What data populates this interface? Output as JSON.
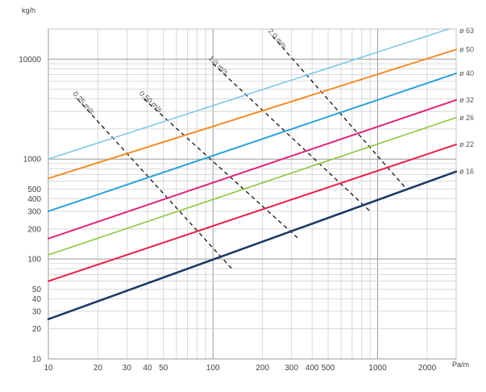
{
  "chart_data": {
    "type": "line",
    "title": "",
    "xlabel": "",
    "ylabel": "",
    "y_unit_label": "kg/h",
    "x_unit_label": "Pa/m",
    "x_scale": "log",
    "y_scale": "log",
    "xlim": [
      10,
      3000
    ],
    "ylim": [
      10,
      20000
    ],
    "grid": true,
    "x_ticks": [
      {
        "value": 10,
        "label": "10"
      },
      {
        "value": 20,
        "label": "20"
      },
      {
        "value": 30,
        "label": "30"
      },
      {
        "value": 40,
        "label": "40"
      },
      {
        "value": 50,
        "label": "50"
      },
      {
        "value": 100,
        "label": "100"
      },
      {
        "value": 200,
        "label": "200"
      },
      {
        "value": 300,
        "label": "300"
      },
      {
        "value": 400,
        "label": "400"
      },
      {
        "value": 500,
        "label": "500"
      },
      {
        "value": 1000,
        "label": "1000"
      },
      {
        "value": 2000,
        "label": "2000"
      }
    ],
    "y_ticks": [
      {
        "value": 10,
        "label": "10"
      },
      {
        "value": 20,
        "label": "20"
      },
      {
        "value": 30,
        "label": "30"
      },
      {
        "value": 40,
        "label": "40"
      },
      {
        "value": 50,
        "label": "50"
      },
      {
        "value": 100,
        "label": "100"
      },
      {
        "value": 200,
        "label": "200"
      },
      {
        "value": 300,
        "label": "300"
      },
      {
        "value": 400,
        "label": "400"
      },
      {
        "value": 500,
        "label": "500"
      },
      {
        "value": 1000,
        "label": "1000"
      },
      {
        "value": 10000,
        "label": "10000"
      }
    ],
    "series": [
      {
        "name": "ø 63",
        "color": "#7fc8e6",
        "width": 1.6,
        "points": [
          [
            10,
            1000
          ],
          [
            2700,
            20000
          ]
        ]
      },
      {
        "name": "ø 50",
        "color": "#f28c28",
        "width": 2.0,
        "points": [
          [
            10,
            640
          ],
          [
            3000,
            12500
          ]
        ]
      },
      {
        "name": "ø 40",
        "color": "#29a3d8",
        "width": 2.0,
        "points": [
          [
            10,
            300
          ],
          [
            3000,
            7200
          ]
        ]
      },
      {
        "name": "ø 32",
        "color": "#e0267a",
        "width": 2.0,
        "points": [
          [
            10,
            160
          ],
          [
            3000,
            3900
          ]
        ]
      },
      {
        "name": "ø 26",
        "color": "#8cc63f",
        "width": 1.6,
        "points": [
          [
            10,
            110
          ],
          [
            3000,
            2600
          ]
        ]
      },
      {
        "name": "ø 22",
        "color": "#e8204a",
        "width": 2.0,
        "points": [
          [
            10,
            60
          ],
          [
            3000,
            1400
          ]
        ]
      },
      {
        "name": "ø 16",
        "color": "#1f3a64",
        "width": 2.6,
        "points": [
          [
            10,
            25
          ],
          [
            3000,
            750
          ]
        ]
      }
    ],
    "velocity_lines": [
      {
        "name": "0,25 m/s",
        "points": [
          [
            15,
            4000
          ],
          [
            130,
            80
          ]
        ]
      },
      {
        "name": "0,50 m/s",
        "points": [
          [
            38,
            4000
          ],
          [
            330,
            160
          ]
        ]
      },
      {
        "name": "1,0 m/s",
        "points": [
          [
            100,
            9000
          ],
          [
            900,
            300
          ]
        ]
      },
      {
        "name": "2,0 m/s",
        "points": [
          [
            230,
            17000
          ],
          [
            1500,
            500
          ]
        ]
      }
    ]
  }
}
